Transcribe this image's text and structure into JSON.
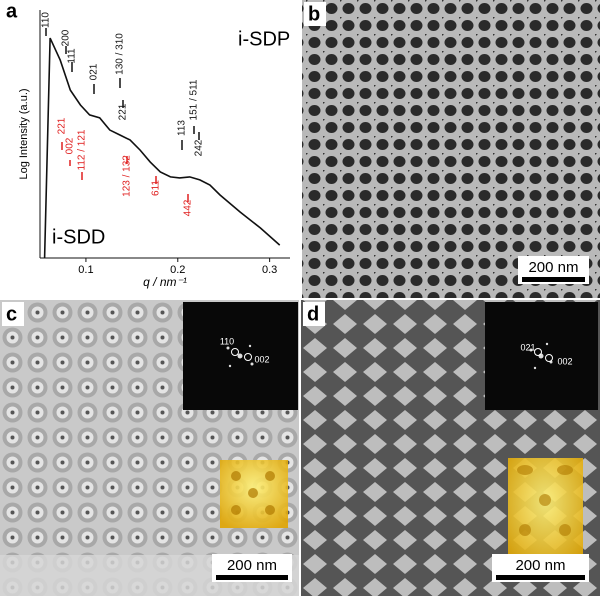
{
  "chart_data": {
    "type": "line",
    "panel_label": "a",
    "xlabel": "q / nm⁻¹",
    "ylabel": "Log Intensity (a.u.)",
    "x": [
      0.055,
      0.061,
      0.072,
      0.083,
      0.094,
      0.104,
      0.115,
      0.126,
      0.137,
      0.148,
      0.159,
      0.17,
      0.181,
      0.192,
      0.202,
      0.213,
      0.224,
      0.235,
      0.246,
      0.268,
      0.29,
      0.311
    ],
    "series": [
      {
        "color": "#111111",
        "values": [
          0,
          8.87,
          7.98,
          6.77,
          6.17,
          5.77,
          5.65,
          5.16,
          4.96,
          4.76,
          4.35,
          3.87,
          3.47,
          3.27,
          3.23,
          3.27,
          3.15,
          2.94,
          2.54,
          1.85,
          1.21,
          0.52
        ]
      }
    ],
    "xlim": [
      0.05,
      0.32
    ],
    "ylim": [
      0,
      10
    ],
    "xticks": [
      0.1,
      0.2,
      0.3
    ],
    "sample_labels": [
      "i-SDP",
      "i-SDD"
    ],
    "peak_labels_black": [
      "110",
      "200",
      "111",
      "021",
      "130 / 310",
      "221",
      "113",
      "151 / 511",
      "242"
    ],
    "peak_labels_red": [
      "221",
      "002",
      "112 / 121",
      "123 / 132",
      "611",
      "442"
    ],
    "black_color": "#111111",
    "red_color": "#e02020"
  },
  "panels": [
    {
      "label": "b",
      "scale_bar": "200 nm"
    },
    {
      "label": "c",
      "scale_bar": "200 nm",
      "fft_labels": [
        "110",
        "002"
      ]
    },
    {
      "label": "d",
      "scale_bar": "200 nm",
      "fft_labels": [
        "021",
        "002"
      ]
    }
  ]
}
